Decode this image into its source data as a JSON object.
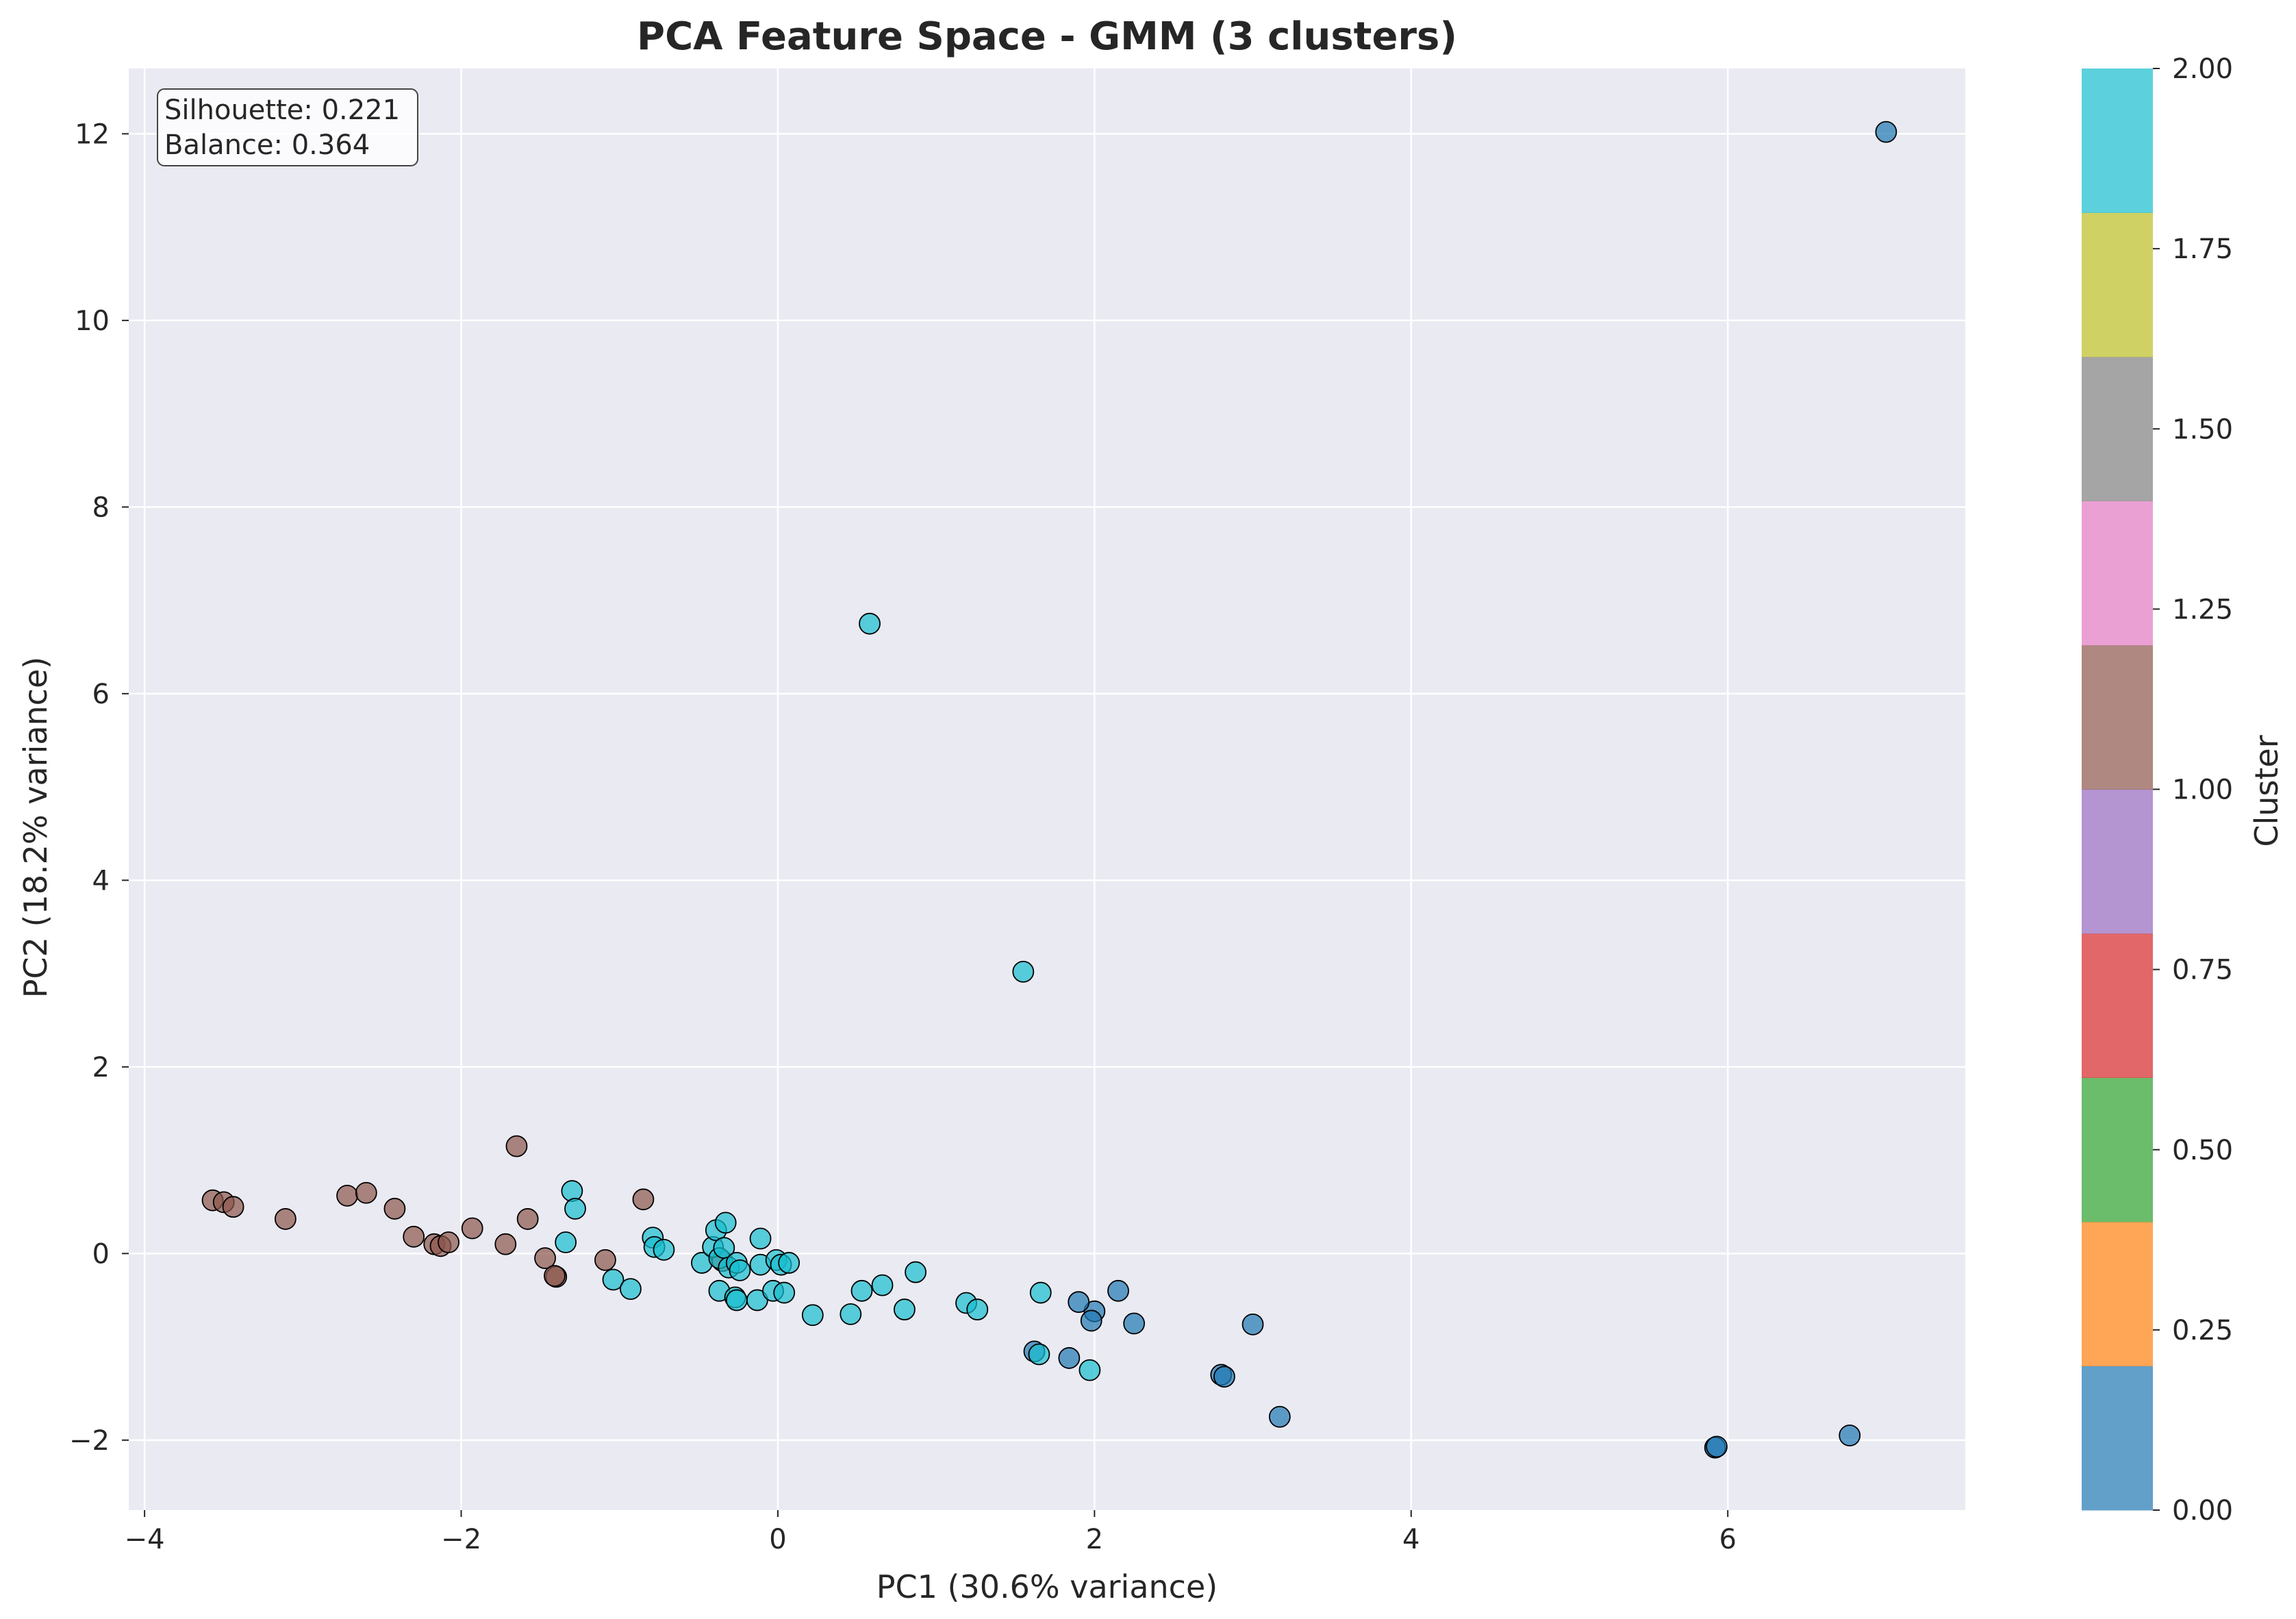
{
  "chart_data": {
    "type": "scatter",
    "title": "PCA Feature Space - GMM (3 clusters)",
    "xlabel": "PC1 (30.6% variance)",
    "ylabel": "PC2 (18.2% variance)",
    "xlim": [
      -4.1,
      7.5
    ],
    "ylim": [
      -2.75,
      12.7
    ],
    "xticks": [
      -4,
      -2,
      0,
      2,
      4,
      6
    ],
    "xtick_labels": [
      "−4",
      "−2",
      "0",
      "2",
      "4",
      "6"
    ],
    "yticks": [
      -2,
      0,
      2,
      4,
      6,
      8,
      10,
      12
    ],
    "ytick_labels": [
      "−2",
      "0",
      "2",
      "4",
      "6",
      "8",
      "10",
      "12"
    ],
    "grid": true,
    "plot_background": "#eaeaf2",
    "annotation": {
      "lines": [
        "Silhouette: 0.221",
        "Balance: 0.364"
      ],
      "placement": "top-left"
    },
    "colorbar": {
      "label": "Cluster",
      "range": [
        0.0,
        2.0
      ],
      "ticks": [
        0.0,
        0.25,
        0.5,
        0.75,
        1.0,
        1.25,
        1.5,
        1.75,
        2.0
      ],
      "tick_labels": [
        "0.00",
        "0.25",
        "0.50",
        "0.75",
        "1.00",
        "1.25",
        "1.50",
        "1.75",
        "2.00"
      ],
      "colors": [
        "#1f77b4",
        "#ff7f0e",
        "#2ca02c",
        "#d62728",
        "#9467bd",
        "#8c564b",
        "#e377c2",
        "#7f7f7f",
        "#bcbd22",
        "#17becf"
      ],
      "alpha": 0.7
    },
    "cluster_colors": {
      "0": "#1f77b4",
      "1": "#8c564b",
      "2": "#17becf"
    },
    "series": [
      {
        "cluster": 0,
        "points": [
          [
            7.0,
            12.02
          ],
          [
            2.0,
            -0.62
          ],
          [
            1.9,
            -0.52
          ],
          [
            2.15,
            -0.4
          ],
          [
            2.25,
            -0.75
          ],
          [
            1.98,
            -0.72
          ],
          [
            1.62,
            -1.05
          ],
          [
            1.84,
            -1.12
          ],
          [
            3.0,
            -0.76
          ],
          [
            2.8,
            -1.3
          ],
          [
            2.82,
            -1.32
          ],
          [
            3.17,
            -1.75
          ],
          [
            5.92,
            -2.08
          ],
          [
            5.93,
            -2.07
          ],
          [
            6.77,
            -1.95
          ]
        ]
      },
      {
        "cluster": 1,
        "points": [
          [
            -3.57,
            0.57
          ],
          [
            -3.5,
            0.55
          ],
          [
            -3.44,
            0.5
          ],
          [
            -3.11,
            0.37
          ],
          [
            -2.72,
            0.62
          ],
          [
            -2.6,
            0.65
          ],
          [
            -2.42,
            0.48
          ],
          [
            -2.3,
            0.18
          ],
          [
            -2.17,
            0.1
          ],
          [
            -2.13,
            0.08
          ],
          [
            -2.08,
            0.12
          ],
          [
            -1.93,
            0.27
          ],
          [
            -1.72,
            0.1
          ],
          [
            -1.65,
            1.15
          ],
          [
            -1.58,
            0.37
          ],
          [
            -1.47,
            -0.05
          ],
          [
            -1.4,
            -0.25
          ],
          [
            -1.41,
            -0.24
          ],
          [
            -1.09,
            -0.07
          ],
          [
            -0.85,
            0.58
          ],
          [
            -0.35,
            -0.08
          ]
        ]
      },
      {
        "cluster": 2,
        "points": [
          [
            0.58,
            6.75
          ],
          [
            1.55,
            3.02
          ],
          [
            -1.3,
            0.67
          ],
          [
            -1.28,
            0.48
          ],
          [
            -1.34,
            0.12
          ],
          [
            -1.04,
            -0.28
          ],
          [
            -0.93,
            -0.38
          ],
          [
            -0.79,
            0.17
          ],
          [
            -0.78,
            0.07
          ],
          [
            -0.72,
            0.04
          ],
          [
            -0.48,
            -0.1
          ],
          [
            -0.41,
            0.07
          ],
          [
            -0.39,
            0.25
          ],
          [
            -0.37,
            -0.05
          ],
          [
            -0.33,
            0.33
          ],
          [
            -0.34,
            0.06
          ],
          [
            -0.31,
            -0.15
          ],
          [
            -0.26,
            -0.1
          ],
          [
            -0.24,
            -0.18
          ],
          [
            -0.37,
            -0.4
          ],
          [
            -0.27,
            -0.47
          ],
          [
            -0.26,
            -0.5
          ],
          [
            -0.13,
            -0.5
          ],
          [
            -0.11,
            0.16
          ],
          [
            -0.11,
            -0.12
          ],
          [
            -0.03,
            -0.4
          ],
          [
            -0.01,
            -0.07
          ],
          [
            0.02,
            -0.12
          ],
          [
            0.04,
            -0.42
          ],
          [
            0.07,
            -0.1
          ],
          [
            0.22,
            -0.66
          ],
          [
            0.46,
            -0.65
          ],
          [
            0.53,
            -0.4
          ],
          [
            0.66,
            -0.34
          ],
          [
            0.8,
            -0.6
          ],
          [
            0.87,
            -0.2
          ],
          [
            1.19,
            -0.53
          ],
          [
            1.26,
            -0.6
          ],
          [
            1.66,
            -0.42
          ],
          [
            1.65,
            -1.08
          ],
          [
            1.97,
            -1.25
          ]
        ]
      }
    ]
  }
}
